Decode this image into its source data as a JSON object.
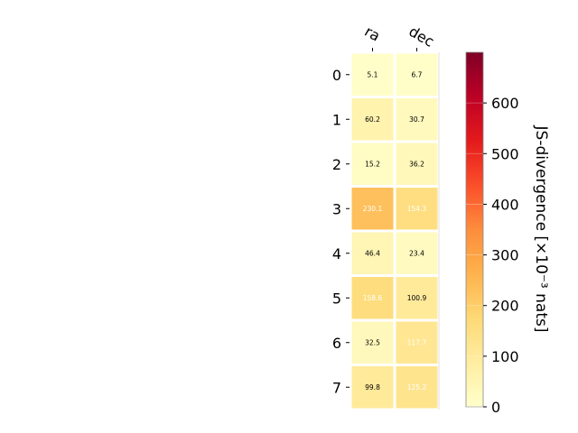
{
  "chart_data": {
    "type": "heatmap",
    "columns": [
      "ra",
      "dec"
    ],
    "rows": [
      "0",
      "1",
      "2",
      "3",
      "4",
      "5",
      "6",
      "7"
    ],
    "values": [
      [
        5.1,
        6.7
      ],
      [
        60.2,
        30.7
      ],
      [
        15.2,
        36.2
      ],
      [
        230.1,
        154.3
      ],
      [
        46.4,
        23.4
      ],
      [
        158.6,
        100.9
      ],
      [
        32.5,
        117.7
      ],
      [
        99.8,
        125.2
      ]
    ],
    "cell_labels": [
      [
        "5.1",
        "6.7"
      ],
      [
        "60.2",
        "30.7"
      ],
      [
        "15.2",
        "36.2"
      ],
      [
        "230.1",
        "154.3"
      ],
      [
        "46.4",
        "23.4"
      ],
      [
        "158.6",
        "100.9"
      ],
      [
        "32.5",
        "117.7"
      ],
      [
        "99.8",
        "125.2"
      ]
    ],
    "colorbar": {
      "label": "JS-divergence [×10⁻³ nats]",
      "range": [
        0,
        700
      ],
      "ticks": [
        0,
        100,
        200,
        300,
        400,
        500,
        600
      ],
      "tick_labels": [
        "0",
        "100",
        "200",
        "300",
        "400",
        "500",
        "600"
      ],
      "colormap": "YlOrRd"
    },
    "grid": false,
    "label_text_colors": {
      "dark": "#000000",
      "light": "#ffffff"
    }
  }
}
